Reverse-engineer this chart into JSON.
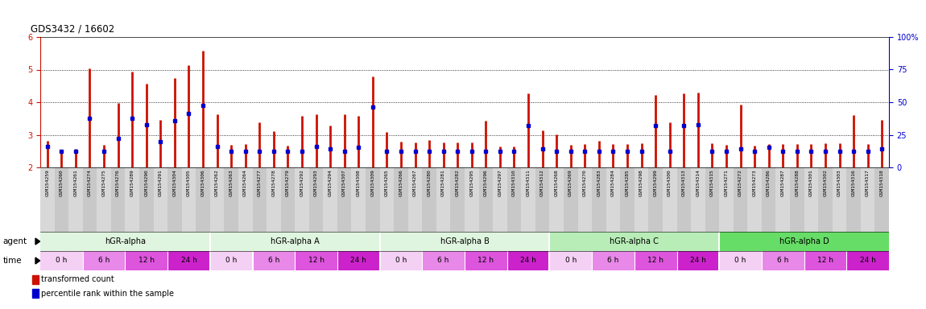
{
  "title": "GDS3432 / 16602",
  "samples": [
    "GSM154259",
    "GSM154260",
    "GSM154261",
    "GSM154274",
    "GSM154275",
    "GSM154276",
    "GSM154289",
    "GSM154290",
    "GSM154291",
    "GSM154304",
    "GSM154305",
    "GSM154306",
    "GSM154262",
    "GSM154263",
    "GSM154264",
    "GSM154277",
    "GSM154278",
    "GSM154279",
    "GSM154292",
    "GSM154293",
    "GSM154294",
    "GSM154307",
    "GSM154308",
    "GSM154309",
    "GSM154265",
    "GSM154266",
    "GSM154267",
    "GSM154280",
    "GSM154281",
    "GSM154282",
    "GSM154295",
    "GSM154296",
    "GSM154297",
    "GSM154310",
    "GSM154311",
    "GSM154312",
    "GSM154268",
    "GSM154269",
    "GSM154270",
    "GSM154283",
    "GSM154284",
    "GSM154285",
    "GSM154298",
    "GSM154299",
    "GSM154300",
    "GSM154313",
    "GSM154314",
    "GSM154315",
    "GSM154271",
    "GSM154272",
    "GSM154273",
    "GSM154286",
    "GSM154287",
    "GSM154288",
    "GSM154301",
    "GSM154302",
    "GSM154303",
    "GSM154316",
    "GSM154317",
    "GSM154318"
  ],
  "red_values": [
    2.82,
    2.55,
    2.57,
    5.03,
    2.68,
    3.98,
    4.94,
    4.57,
    3.45,
    4.75,
    5.14,
    5.59,
    3.62,
    2.7,
    2.71,
    3.38,
    3.12,
    2.66,
    3.58,
    3.62,
    3.28,
    3.62,
    3.58,
    4.78,
    3.08,
    2.8,
    2.76,
    2.84,
    2.77,
    2.77,
    2.76,
    3.42,
    2.65,
    2.65,
    4.28,
    3.13,
    3.02,
    2.7,
    2.71,
    2.82,
    2.72,
    2.72,
    2.74,
    4.22,
    3.38,
    4.28,
    4.3,
    2.73,
    2.7,
    3.92,
    2.66,
    2.71,
    2.72,
    2.71,
    2.71,
    2.73,
    2.73,
    3.6,
    2.71,
    3.46
  ],
  "blue_values": [
    2.65,
    2.5,
    2.5,
    3.5,
    2.5,
    2.88,
    3.5,
    3.3,
    2.78,
    3.42,
    3.65,
    3.9,
    2.63,
    2.5,
    2.5,
    2.5,
    2.5,
    2.5,
    2.5,
    2.63,
    2.57,
    2.5,
    2.62,
    3.85,
    2.5,
    2.5,
    2.5,
    2.5,
    2.5,
    2.5,
    2.5,
    2.5,
    2.5,
    2.5,
    3.28,
    2.57,
    2.5,
    2.5,
    2.5,
    2.5,
    2.5,
    2.5,
    2.5,
    3.28,
    2.5,
    3.28,
    3.3,
    2.5,
    2.5,
    2.58,
    2.5,
    2.62,
    2.5,
    2.5,
    2.5,
    2.5,
    2.5,
    2.5,
    2.5,
    2.58
  ],
  "groups": [
    {
      "label": "hGR-alpha",
      "start": 0,
      "end": 12,
      "color": "#dff5df"
    },
    {
      "label": "hGR-alpha A",
      "start": 12,
      "end": 24,
      "color": "#dff5df"
    },
    {
      "label": "hGR-alpha B",
      "start": 24,
      "end": 36,
      "color": "#dff5df"
    },
    {
      "label": "hGR-alpha C",
      "start": 36,
      "end": 48,
      "color": "#b8edb8"
    },
    {
      "label": "hGR-alpha D",
      "start": 48,
      "end": 60,
      "color": "#66dd66"
    }
  ],
  "time_labels": [
    "0 h",
    "6 h",
    "12 h",
    "24 h"
  ],
  "time_colors": [
    "#f5d0f5",
    "#e888e8",
    "#dd55dd",
    "#cc22cc"
  ],
  "ylim_left": [
    2,
    6
  ],
  "ylim_right": [
    0,
    100
  ],
  "yticks_left": [
    2,
    3,
    4,
    5,
    6
  ],
  "yticks_right": [
    0,
    25,
    50,
    75,
    100
  ],
  "bar_color": "#cc1100",
  "marker_color": "#0000cc",
  "legend_red": "transformed count",
  "legend_blue": "percentile rank within the sample",
  "label_bg_even": "#d8d8d8",
  "label_bg_odd": "#c8c8c8"
}
